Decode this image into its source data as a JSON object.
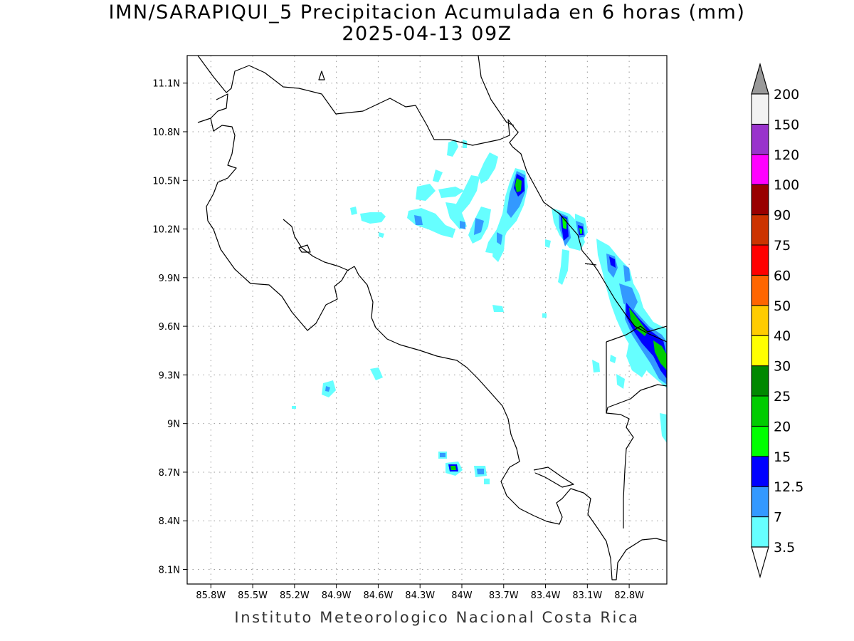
{
  "title": "IMN/SARAPIQUI_5 Precipitacion Acumulada en 6 horas (mm)",
  "subtitle": "2025-04-13 09Z",
  "credit": "Instituto Meteorologico Nacional Costa Rica",
  "map_extent": {
    "lon_min": -85.97,
    "lon_max": -82.53,
    "lat_min": 8.01,
    "lat_max": 11.27
  },
  "lon_ticks": [
    {
      "value": -85.8,
      "label": "85.8W"
    },
    {
      "value": -85.5,
      "label": "85.5W"
    },
    {
      "value": -85.2,
      "label": "85.2W"
    },
    {
      "value": -84.9,
      "label": "84.9W"
    },
    {
      "value": -84.6,
      "label": "84.6W"
    },
    {
      "value": -84.3,
      "label": "84.3W"
    },
    {
      "value": -84.0,
      "label": "84W"
    },
    {
      "value": -83.7,
      "label": "83.7W"
    },
    {
      "value": -83.4,
      "label": "83.4W"
    },
    {
      "value": -83.1,
      "label": "83.1W"
    },
    {
      "value": -82.8,
      "label": "82.8W"
    }
  ],
  "lat_ticks": [
    {
      "value": 11.1,
      "label": "11.1N"
    },
    {
      "value": 10.8,
      "label": "10.8N"
    },
    {
      "value": 10.5,
      "label": "10.5N"
    },
    {
      "value": 10.2,
      "label": "10.2N"
    },
    {
      "value": 9.9,
      "label": "9.9N"
    },
    {
      "value": 9.6,
      "label": "9.6N"
    },
    {
      "value": 9.3,
      "label": "9.3N"
    },
    {
      "value": 9.0,
      "label": "9N"
    },
    {
      "value": 8.7,
      "label": "8.7N"
    },
    {
      "value": 8.4,
      "label": "8.4N"
    },
    {
      "value": 8.1,
      "label": "8.1N"
    }
  ],
  "colorbar": {
    "bins": [
      {
        "color": "#66ffff",
        "label": "3.5"
      },
      {
        "color": "#3399ff",
        "label": "7"
      },
      {
        "color": "#0000ff",
        "label": "12.5"
      },
      {
        "color": "#00ff00",
        "label": "15"
      },
      {
        "color": "#00cc00",
        "label": "20"
      },
      {
        "color": "#008800",
        "label": "25"
      },
      {
        "color": "#ffff00",
        "label": "30"
      },
      {
        "color": "#ffcc00",
        "label": "40"
      },
      {
        "color": "#ff6600",
        "label": "50"
      },
      {
        "color": "#ff0000",
        "label": "60"
      },
      {
        "color": "#cc3300",
        "label": "75"
      },
      {
        "color": "#990000",
        "label": "90"
      },
      {
        "color": "#ff00ff",
        "label": "100"
      },
      {
        "color": "#9933cc",
        "label": "120"
      },
      {
        "color": "#f2f2f2",
        "label": "150"
      }
    ],
    "top_label": "200",
    "over_color": "#999999"
  }
}
